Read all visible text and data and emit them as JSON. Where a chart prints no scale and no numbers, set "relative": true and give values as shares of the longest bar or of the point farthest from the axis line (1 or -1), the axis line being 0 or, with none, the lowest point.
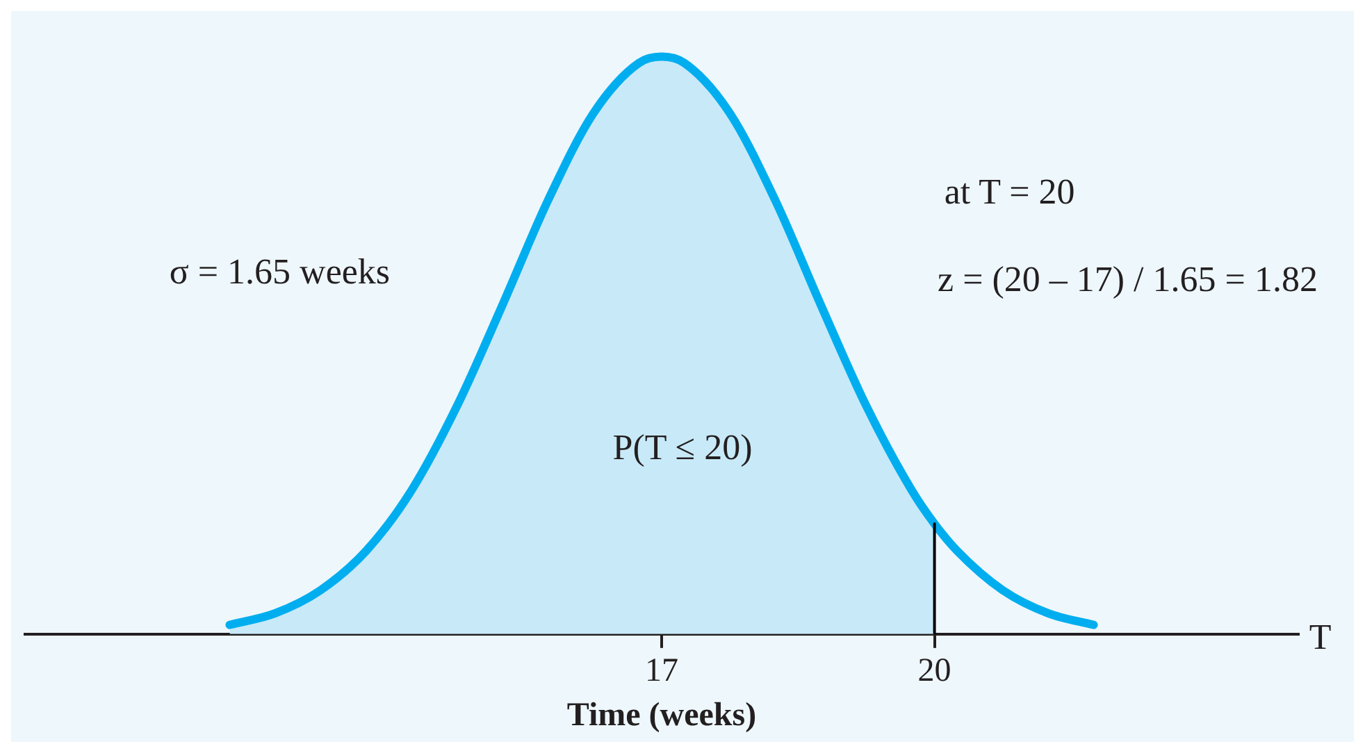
{
  "chart_data": {
    "type": "line",
    "relative": true,
    "xlabel": "Time (weeks)",
    "xlim": [
      10,
      24
    ],
    "xticks": [
      17,
      20
    ],
    "annotations": [
      "σ = 1.65 weeks",
      "P(T ≤ 20)",
      "at T = 20",
      "z = (20 – 17) / 1.65 = 1.82",
      "T"
    ],
    "series": [
      {
        "type": "area",
        "color": "#c8e9f8",
        "x": [
          12.25,
          12.75,
          13.25,
          13.75,
          14.25,
          14.75,
          15.25,
          15.75,
          16.25,
          16.75,
          17,
          17.25,
          17.75,
          18.25,
          18.75,
          19.25,
          19.75,
          20
        ],
        "values": [
          0.016,
          0.036,
          0.076,
          0.144,
          0.249,
          0.395,
          0.57,
          0.751,
          0.902,
          0.989,
          1,
          0.989,
          0.902,
          0.751,
          0.57,
          0.395,
          0.249,
          0.191
        ]
      },
      {
        "type": "line",
        "color": "#00aeef",
        "x": [
          12.25,
          12.75,
          13.25,
          13.75,
          14.25,
          14.75,
          15.25,
          15.75,
          16.25,
          16.75,
          17,
          17.25,
          17.75,
          18.25,
          18.75,
          19.25,
          19.75,
          20,
          20.25,
          20.75,
          21.25,
          21.75
        ],
        "values": [
          0.016,
          0.036,
          0.076,
          0.144,
          0.249,
          0.395,
          0.57,
          0.751,
          0.902,
          0.989,
          1,
          0.989,
          0.902,
          0.751,
          0.57,
          0.395,
          0.249,
          0.191,
          0.144,
          0.076,
          0.036,
          0.016
        ]
      },
      {
        "type": "line",
        "color": "#000000",
        "x": [
          20,
          20
        ],
        "values": [
          0,
          0.191
        ]
      }
    ]
  }
}
